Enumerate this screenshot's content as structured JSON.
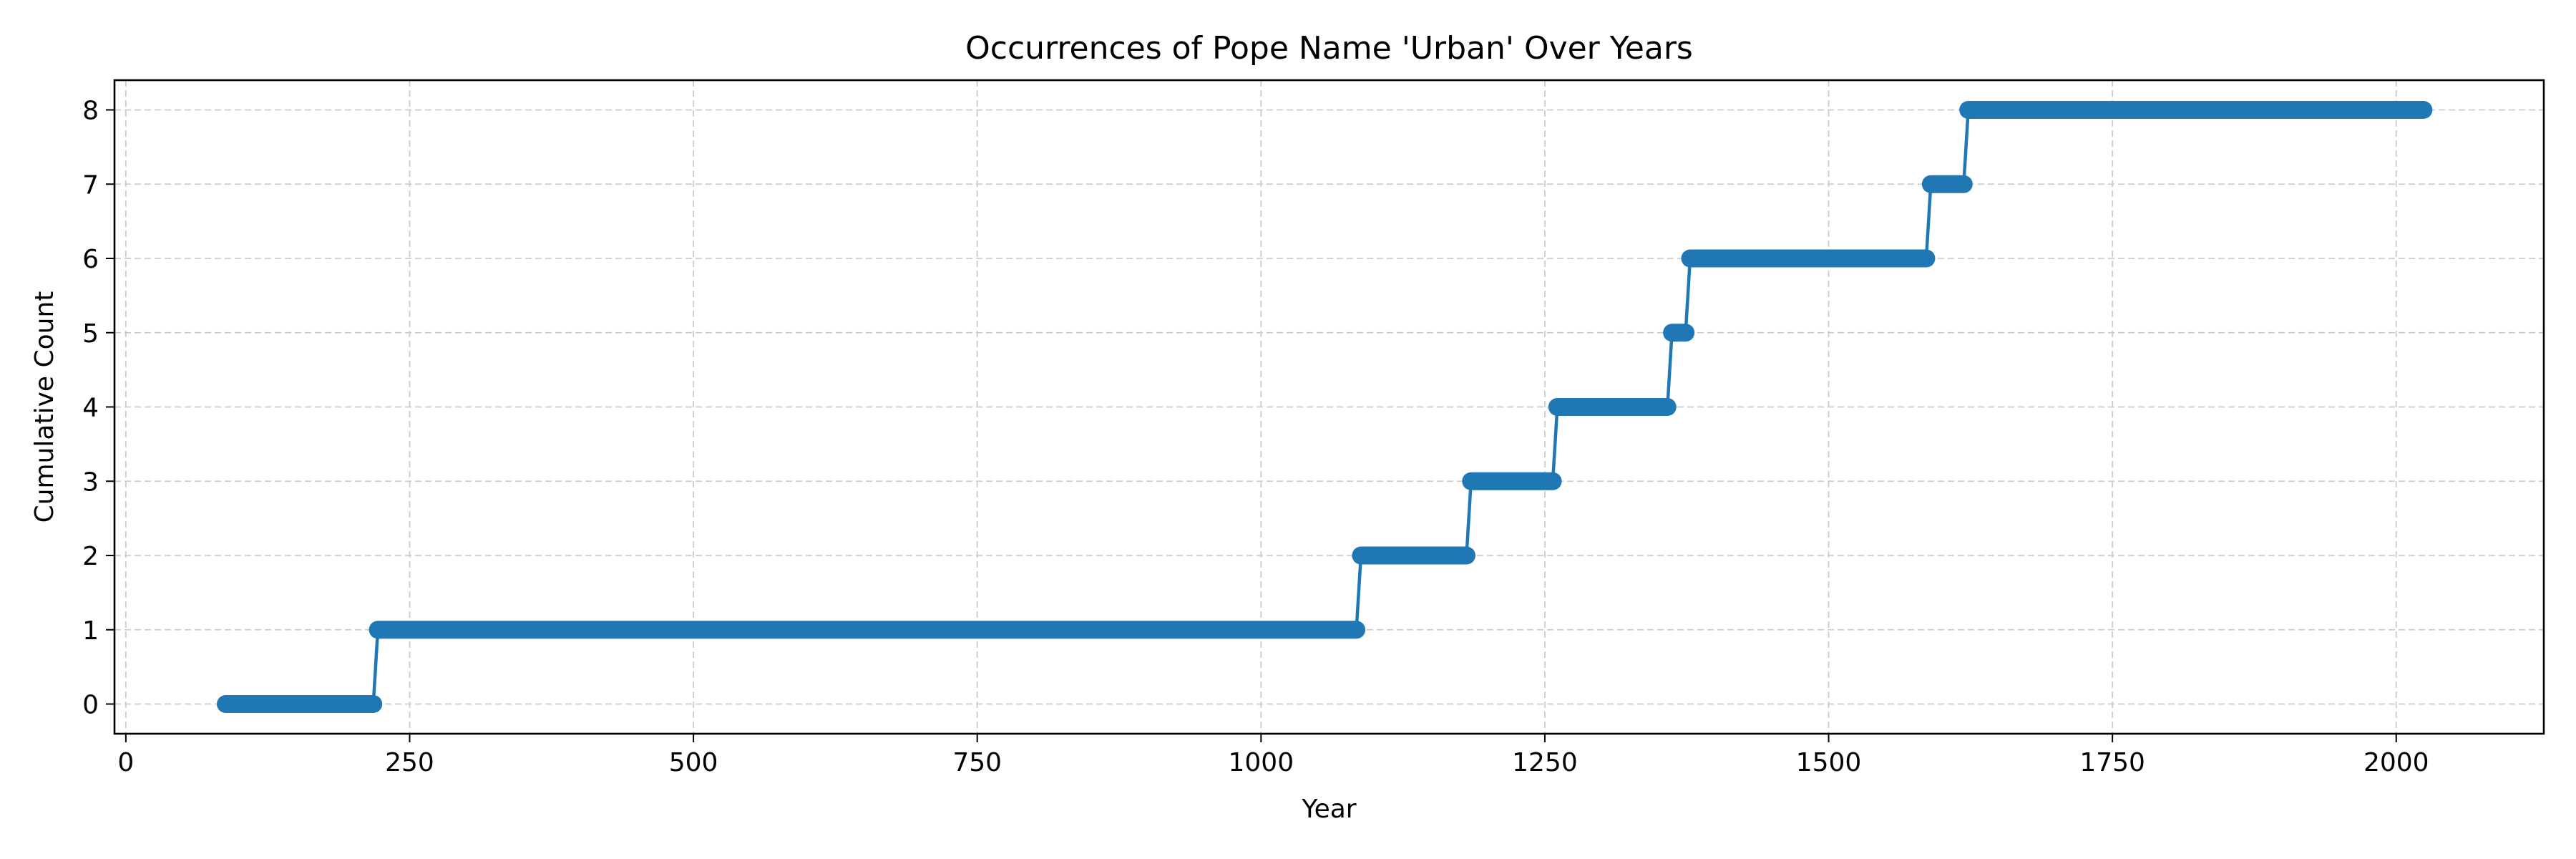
{
  "chart_data": {
    "type": "line",
    "title": "Occurrences of Pope Name 'Urban' Over Years",
    "xlabel": "Year",
    "ylabel": "Cumulative Count",
    "xlim": [
      -10,
      2130
    ],
    "ylim": [
      -0.4,
      8.4
    ],
    "xticks": [
      0,
      250,
      500,
      750,
      1000,
      1250,
      1500,
      1750,
      2000
    ],
    "yticks": [
      0,
      1,
      2,
      3,
      4,
      5,
      6,
      7,
      8
    ],
    "grid": true,
    "colors": {
      "series": "#1f77b4",
      "grid": "#cccccc",
      "axes": "#000000"
    },
    "series": [
      {
        "step_changes": [
          {
            "year": 222,
            "count": 1
          },
          {
            "year": 1088,
            "count": 2
          },
          {
            "year": 1185,
            "count": 3
          },
          {
            "year": 1261,
            "count": 4
          },
          {
            "year": 1362,
            "count": 5
          },
          {
            "year": 1378,
            "count": 6
          },
          {
            "year": 1590,
            "count": 7
          },
          {
            "year": 1623,
            "count": 8
          }
        ],
        "x_start": 88,
        "x_end": 2024,
        "start_count": 0
      }
    ]
  }
}
